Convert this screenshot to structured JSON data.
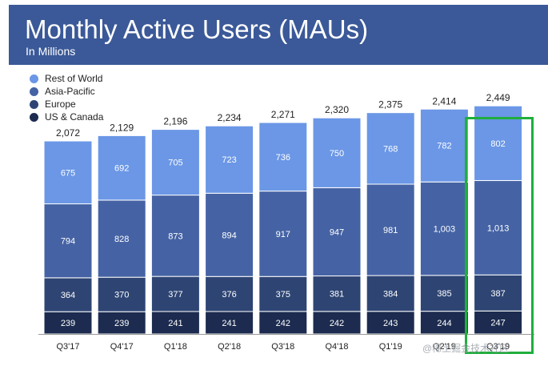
{
  "header": {
    "title": "Monthly Active Users (MAUs)",
    "subtitle": "In Millions"
  },
  "colors": {
    "header_bg": "#3b5998",
    "highlight": "#1fae3c"
  },
  "watermark": "@稀土掘金技术社区",
  "chart_data": {
    "type": "bar",
    "stacked": true,
    "categories": [
      "Q3'17",
      "Q4'17",
      "Q1'18",
      "Q2'18",
      "Q3'18",
      "Q4'18",
      "Q1'19",
      "Q2'19",
      "Q3'19"
    ],
    "totals": [
      "2,072",
      "2,129",
      "2,196",
      "2,234",
      "2,271",
      "2,320",
      "2,375",
      "2,414",
      "2,449"
    ],
    "series": [
      {
        "name": "US & Canada",
        "color": "#1c2b4f",
        "values": [
          239,
          239,
          241,
          241,
          242,
          242,
          243,
          244,
          247
        ]
      },
      {
        "name": "Europe",
        "color": "#2e4574",
        "values": [
          364,
          370,
          377,
          376,
          375,
          381,
          384,
          385,
          387
        ]
      },
      {
        "name": "Asia-Pacific",
        "color": "#4563a4",
        "values": [
          794,
          828,
          873,
          894,
          917,
          947,
          981,
          1003,
          1013
        ]
      },
      {
        "name": "Rest of World",
        "color": "#6b97e6",
        "values": [
          675,
          692,
          705,
          723,
          736,
          750,
          768,
          782,
          802
        ]
      }
    ],
    "value_labels": [
      [
        "239",
        "239",
        "241",
        "241",
        "242",
        "242",
        "243",
        "244",
        "247"
      ],
      [
        "364",
        "370",
        "377",
        "376",
        "375",
        "381",
        "384",
        "385",
        "387"
      ],
      [
        "794",
        "828",
        "873",
        "894",
        "917",
        "947",
        "981",
        "1,003",
        "1,013"
      ],
      [
        "675",
        "692",
        "705",
        "723",
        "736",
        "750",
        "768",
        "782",
        "802"
      ]
    ],
    "legend": [
      "Rest of World",
      "Asia-Pacific",
      "Europe",
      "US & Canada"
    ],
    "legend_position": "top-left",
    "highlighted_category": "Q3'19",
    "grid": false
  }
}
